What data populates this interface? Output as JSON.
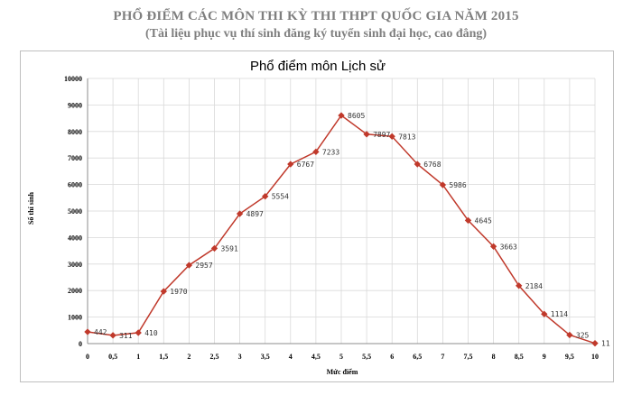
{
  "page": {
    "heading": "PHỔ ĐIỂM CÁC MÔN THI KỲ THI THPT QUỐC GIA NĂM 2015",
    "subheading": "(Tài liệu phục vụ thí sinh đăng ký tuyển sinh đại học, cao đẳng)"
  },
  "chart_data": {
    "type": "line",
    "title": "Phổ điểm môn Lịch sử",
    "xlabel": "Mức điểm",
    "ylabel": "Số thí sinh",
    "x": [
      "0",
      "0,5",
      "1",
      "1,5",
      "2",
      "2,5",
      "3",
      "3,5",
      "4",
      "4,5",
      "5",
      "5,5",
      "6",
      "6,5",
      "7",
      "7,5",
      "8",
      "8,5",
      "9",
      "9,5",
      "10"
    ],
    "series": [
      {
        "values": [
          442,
          311,
          410,
          1970,
          2957,
          3591,
          4897,
          5554,
          6767,
          7233,
          8605,
          7897,
          7813,
          6768,
          5986,
          4645,
          3663,
          2184,
          1114,
          325,
          11
        ]
      }
    ],
    "ylim": [
      0,
      10000
    ],
    "yticks": [
      0,
      1000,
      2000,
      3000,
      4000,
      5000,
      6000,
      7000,
      8000,
      9000,
      10000
    ],
    "grid": true,
    "legend": "none",
    "line_color": "#c0392b"
  }
}
